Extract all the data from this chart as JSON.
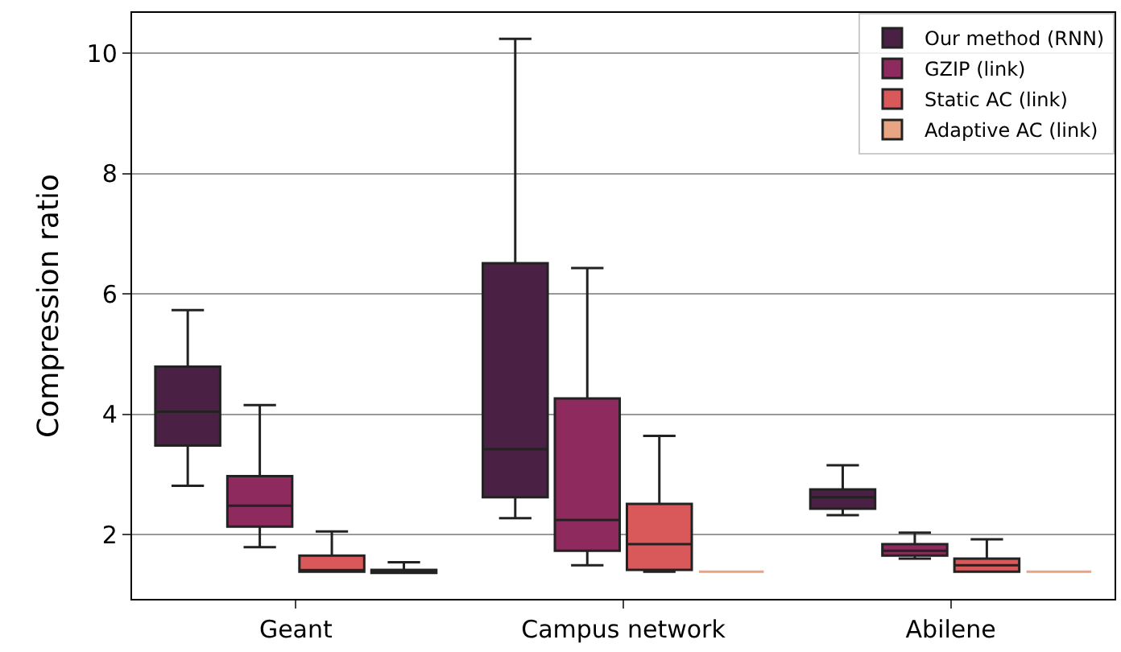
{
  "chart_data": {
    "type": "box",
    "ylabel": "Compression ratio",
    "categories": [
      "Geant",
      "Campus network",
      "Abilene"
    ],
    "ylim": [
      0.93,
      10.67
    ],
    "yticks": [
      2,
      4,
      6,
      8,
      10
    ],
    "grid": "y",
    "legend": "top right",
    "series": [
      {
        "name": "Our method (RNN)",
        "color": "#4a2145",
        "boxes": [
          {
            "low": 2.81,
            "q1": 3.48,
            "median": 4.04,
            "q3": 4.79,
            "high": 5.73
          },
          {
            "low": 2.27,
            "q1": 2.62,
            "median": 3.42,
            "q3": 6.51,
            "high": 10.24
          },
          {
            "low": 2.32,
            "q1": 2.43,
            "median": 2.62,
            "q3": 2.75,
            "high": 3.15
          }
        ]
      },
      {
        "name": "GZIP (link)",
        "color": "#8e2a5e",
        "boxes": [
          {
            "low": 1.79,
            "q1": 2.13,
            "median": 2.48,
            "q3": 2.97,
            "high": 4.15
          },
          {
            "low": 1.49,
            "q1": 1.73,
            "median": 2.24,
            "q3": 4.26,
            "high": 6.43
          },
          {
            "low": 1.6,
            "q1": 1.65,
            "median": 1.73,
            "q3": 1.84,
            "high": 2.03
          }
        ]
      },
      {
        "name": "Static AC (link)",
        "color": "#d9585a",
        "boxes": [
          {
            "low": 1.38,
            "q1": 1.38,
            "median": 1.38,
            "q3": 1.65,
            "high": 2.05
          },
          {
            "low": 1.38,
            "q1": 1.41,
            "median": 1.84,
            "q3": 2.51,
            "high": 3.64
          },
          {
            "low": 1.38,
            "q1": 1.38,
            "median": 1.49,
            "q3": 1.6,
            "high": 1.92
          }
        ]
      },
      {
        "name": "Adaptive AC (link)",
        "color": "#e8a584",
        "boxes": [
          {
            "low": 1.36,
            "q1": 1.36,
            "median": 1.38,
            "q3": 1.41,
            "high": 1.54
          },
          {
            "low": 1.38,
            "q1": 1.38,
            "median": 1.38,
            "q3": 1.38,
            "high": 1.38
          },
          {
            "low": 1.38,
            "q1": 1.38,
            "median": 1.38,
            "q3": 1.38,
            "high": 1.38
          }
        ]
      }
    ]
  }
}
